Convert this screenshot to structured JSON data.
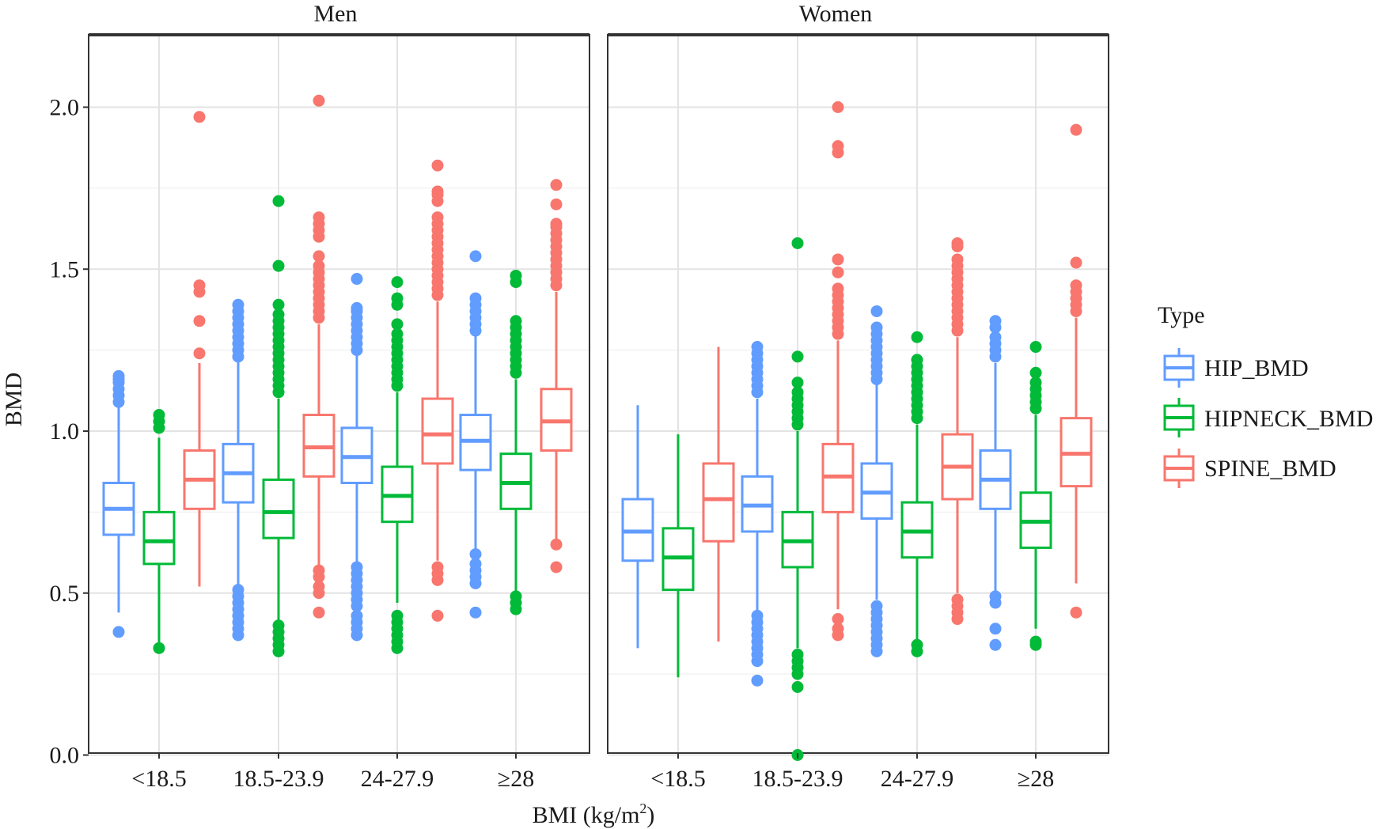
{
  "chart_data": {
    "type": "boxplot",
    "panels": [
      "Men",
      "Women"
    ],
    "xlabel": "BMI (kg/m",
    "xlabel_superscript": "2",
    "xlabel_close": ")",
    "ylabel": "BMD",
    "categories": [
      "<18.5",
      "18.5-23.9",
      "24-27.9",
      "≥28"
    ],
    "ylim": [
      -0.09,
      2.13
    ],
    "yticks": [
      0.0,
      0.5,
      1.0,
      1.5,
      2.0
    ],
    "ytick_labels": [
      "0.0",
      "0.5",
      "1.0",
      "1.5",
      "2.0"
    ],
    "grid": true,
    "legend": {
      "title": "Type",
      "position": "right",
      "entries": [
        "HIP_BMD",
        "HIPNECK_BMD",
        "SPINE_BMD"
      ]
    },
    "series": [
      {
        "name": "HIP_BMD",
        "color": "#619CFF",
        "groups": [
          [
            {
              "q1": 0.68,
              "median": 0.76,
              "q3": 0.84,
              "low": 0.44,
              "high": 1.08,
              "outliers": [
                1.09,
                1.11,
                1.13,
                1.15,
                1.16,
                1.17,
                0.38
              ]
            },
            {
              "q1": 0.78,
              "median": 0.87,
              "q3": 0.96,
              "low": 0.52,
              "high": 1.22,
              "outliers": [
                1.23,
                1.25,
                1.27,
                1.29,
                1.31,
                1.33,
                1.35,
                1.37,
                1.39,
                0.37,
                0.39,
                0.41,
                0.43,
                0.45,
                0.47,
                0.49,
                0.51
              ]
            },
            {
              "q1": 0.84,
              "median": 0.92,
              "q3": 1.01,
              "low": 0.59,
              "high": 1.24,
              "outliers": [
                1.25,
                1.27,
                1.29,
                1.31,
                1.33,
                1.35,
                1.37,
                1.38,
                1.47,
                0.37,
                0.39,
                0.41,
                0.43,
                0.46,
                0.48,
                0.5,
                0.52,
                0.54,
                0.56,
                0.58
              ]
            },
            {
              "q1": 0.88,
              "median": 0.97,
              "q3": 1.05,
              "low": 0.63,
              "high": 1.3,
              "outliers": [
                1.31,
                1.33,
                1.35,
                1.37,
                1.39,
                1.41,
                1.54,
                0.44,
                0.53,
                0.55,
                0.57,
                0.59,
                0.62
              ]
            }
          ],
          [
            {
              "q1": 0.6,
              "median": 0.69,
              "q3": 0.79,
              "low": 0.33,
              "high": 1.08,
              "outliers": []
            },
            {
              "q1": 0.69,
              "median": 0.77,
              "q3": 0.86,
              "low": 0.44,
              "high": 1.1,
              "outliers": [
                1.12,
                1.14,
                1.16,
                1.18,
                1.2,
                1.22,
                1.24,
                1.26,
                0.23,
                0.29,
                0.31,
                0.33,
                0.35,
                0.37,
                0.39,
                0.41,
                0.43
              ]
            },
            {
              "q1": 0.73,
              "median": 0.81,
              "q3": 0.9,
              "low": 0.48,
              "high": 1.15,
              "outliers": [
                1.16,
                1.18,
                1.2,
                1.22,
                1.24,
                1.26,
                1.28,
                1.3,
                1.32,
                1.37,
                0.32,
                0.34,
                0.36,
                0.38,
                0.4,
                0.42,
                0.44,
                0.46
              ]
            },
            {
              "q1": 0.76,
              "median": 0.85,
              "q3": 0.94,
              "low": 0.5,
              "high": 1.21,
              "outliers": [
                1.23,
                1.25,
                1.27,
                1.29,
                1.32,
                1.34,
                0.34,
                0.39,
                0.47,
                0.49
              ]
            }
          ]
        ]
      },
      {
        "name": "HIPNECK_BMD",
        "color": "#00BA38",
        "groups": [
          [
            {
              "q1": 0.59,
              "median": 0.66,
              "q3": 0.75,
              "low": 0.34,
              "high": 0.98,
              "outliers": [
                1.01,
                1.03,
                1.05,
                0.33
              ]
            },
            {
              "q1": 0.67,
              "median": 0.75,
              "q3": 0.85,
              "low": 0.41,
              "high": 1.1,
              "outliers": [
                1.12,
                1.14,
                1.16,
                1.18,
                1.2,
                1.22,
                1.24,
                1.26,
                1.28,
                1.3,
                1.32,
                1.34,
                1.36,
                1.39,
                1.51,
                1.71,
                0.32,
                0.34,
                0.36,
                0.38,
                0.4
              ]
            },
            {
              "q1": 0.72,
              "median": 0.8,
              "q3": 0.89,
              "low": 0.47,
              "high": 1.12,
              "outliers": [
                1.14,
                1.16,
                1.18,
                1.2,
                1.22,
                1.24,
                1.26,
                1.28,
                1.3,
                1.33,
                1.39,
                1.41,
                1.46,
                0.33,
                0.35,
                0.37,
                0.39,
                0.41,
                0.43
              ]
            },
            {
              "q1": 0.76,
              "median": 0.84,
              "q3": 0.93,
              "low": 0.5,
              "high": 1.16,
              "outliers": [
                1.18,
                1.2,
                1.22,
                1.24,
                1.26,
                1.28,
                1.3,
                1.32,
                1.34,
                1.46,
                1.48,
                0.45,
                0.47,
                0.49
              ]
            }
          ],
          [
            {
              "q1": 0.51,
              "median": 0.61,
              "q3": 0.7,
              "low": 0.24,
              "high": 0.99,
              "outliers": []
            },
            {
              "q1": 0.58,
              "median": 0.66,
              "q3": 0.75,
              "low": 0.33,
              "high": 1.0,
              "outliers": [
                1.02,
                1.04,
                1.06,
                1.08,
                1.1,
                1.12,
                1.15,
                1.23,
                1.58,
                0.0,
                0.21,
                0.25,
                0.27,
                0.29,
                0.31
              ]
            },
            {
              "q1": 0.61,
              "median": 0.69,
              "q3": 0.78,
              "low": 0.35,
              "high": 1.02,
              "outliers": [
                1.04,
                1.06,
                1.08,
                1.1,
                1.12,
                1.14,
                1.16,
                1.18,
                1.2,
                1.22,
                1.29,
                0.32,
                0.34
              ]
            },
            {
              "q1": 0.64,
              "median": 0.72,
              "q3": 0.81,
              "low": 0.39,
              "high": 1.05,
              "outliers": [
                1.07,
                1.09,
                1.11,
                1.13,
                1.15,
                1.18,
                1.26,
                0.34,
                0.35
              ]
            }
          ]
        ]
      },
      {
        "name": "SPINE_BMD",
        "color": "#F8766D",
        "groups": [
          [
            {
              "q1": 0.76,
              "median": 0.85,
              "q3": 0.94,
              "low": 0.52,
              "high": 1.21,
              "outliers": [
                1.24,
                1.34,
                1.43,
                1.45,
                1.97
              ]
            },
            {
              "q1": 0.86,
              "median": 0.95,
              "q3": 1.05,
              "low": 0.58,
              "high": 1.33,
              "outliers": [
                1.35,
                1.37,
                1.39,
                1.41,
                1.43,
                1.45,
                1.47,
                1.49,
                1.51,
                1.54,
                1.6,
                1.62,
                1.64,
                1.66,
                2.02,
                0.44,
                0.5,
                0.52,
                0.55,
                0.57
              ]
            },
            {
              "q1": 0.9,
              "median": 0.99,
              "q3": 1.1,
              "low": 0.6,
              "high": 1.4,
              "outliers": [
                1.42,
                1.44,
                1.46,
                1.48,
                1.5,
                1.52,
                1.54,
                1.56,
                1.58,
                1.6,
                1.62,
                1.64,
                1.66,
                1.71,
                1.73,
                1.74,
                1.82,
                0.43,
                0.54,
                0.56,
                0.58
              ]
            },
            {
              "q1": 0.94,
              "median": 1.03,
              "q3": 1.13,
              "low": 0.66,
              "high": 1.43,
              "outliers": [
                1.45,
                1.47,
                1.49,
                1.51,
                1.53,
                1.55,
                1.57,
                1.59,
                1.61,
                1.63,
                1.64,
                1.7,
                1.76,
                0.58,
                0.65
              ]
            }
          ],
          [
            {
              "q1": 0.66,
              "median": 0.79,
              "q3": 0.9,
              "low": 0.35,
              "high": 1.26,
              "outliers": []
            },
            {
              "q1": 0.75,
              "median": 0.86,
              "q3": 0.96,
              "low": 0.45,
              "high": 1.28,
              "outliers": [
                1.3,
                1.32,
                1.34,
                1.36,
                1.38,
                1.4,
                1.42,
                1.44,
                1.49,
                1.53,
                1.86,
                1.88,
                2.0,
                0.37,
                0.39,
                0.42
              ]
            },
            {
              "q1": 0.79,
              "median": 0.89,
              "q3": 0.99,
              "low": 0.5,
              "high": 1.29,
              "outliers": [
                1.31,
                1.33,
                1.35,
                1.37,
                1.39,
                1.41,
                1.43,
                1.45,
                1.47,
                1.49,
                1.51,
                1.53,
                1.57,
                1.58,
                0.42,
                0.44,
                0.46,
                0.48
              ]
            },
            {
              "q1": 0.83,
              "median": 0.93,
              "q3": 1.04,
              "low": 0.53,
              "high": 1.35,
              "outliers": [
                1.37,
                1.39,
                1.41,
                1.43,
                1.45,
                1.52,
                1.93,
                0.44
              ]
            }
          ]
        ]
      }
    ]
  }
}
